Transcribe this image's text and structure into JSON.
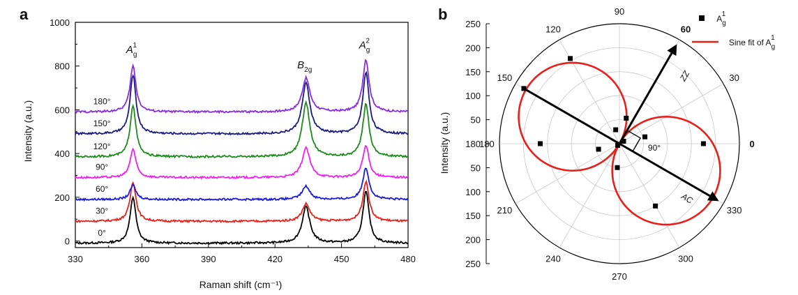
{
  "panels": {
    "a": {
      "letter": "a"
    },
    "b": {
      "letter": "b"
    }
  },
  "chart_data": [
    {
      "type": "line",
      "panel": "a",
      "xlabel": "Raman shift (cm⁻¹)",
      "ylabel": "Intensity (a.u.)",
      "xlim": [
        330,
        480
      ],
      "ylim": [
        -30,
        1000
      ],
      "xticks": [
        330,
        360,
        390,
        420,
        450,
        480
      ],
      "yticks": [
        0,
        200,
        400,
        600,
        800,
        1000
      ],
      "grid": false,
      "peaks": [
        {
          "label": "A",
          "sub": "g",
          "sup": "1",
          "x": 356
        },
        {
          "label": "B",
          "sub": "2g",
          "sup": "",
          "x": 434
        },
        {
          "label": "A",
          "sub": "g",
          "sup": "2",
          "x": 461
        }
      ],
      "series": [
        {
          "name": "0°",
          "color": "#000000",
          "baseline": -10,
          "peak_heights": [
            210,
            165,
            235
          ]
        },
        {
          "name": "30°",
          "color": "#e8201a",
          "baseline": 90,
          "peak_heights": [
            180,
            80,
            180
          ]
        },
        {
          "name": "60°",
          "color": "#1a1adc",
          "baseline": 190,
          "peak_heights": [
            65,
            60,
            145
          ]
        },
        {
          "name": "90°",
          "color": "#f01ef0",
          "baseline": 290,
          "peak_heights": [
            130,
            135,
            145
          ]
        },
        {
          "name": "120°",
          "color": "#1a8a1a",
          "baseline": 385,
          "peak_heights": [
            235,
            245,
            240
          ]
        },
        {
          "name": "150°",
          "color": "#1a1a80",
          "baseline": 490,
          "peak_heights": [
            270,
            230,
            280
          ]
        },
        {
          "name": "180°",
          "color": "#8a2be2",
          "baseline": 590,
          "peak_heights": [
            210,
            155,
            240
          ]
        }
      ]
    },
    {
      "type": "scatter",
      "polar": true,
      "panel": "b",
      "ylabel": "Intensity (a.u.)",
      "rlim": [
        0,
        250
      ],
      "rticks": [
        50,
        100,
        150,
        200,
        250
      ],
      "angle_ticks": [
        0,
        30,
        60,
        90,
        120,
        150,
        180,
        210,
        240,
        270,
        300,
        330
      ],
      "legend_position": "top-right",
      "legend": [
        {
          "label": "A",
          "sub": "g",
          "sup": "1",
          "marker": "square",
          "color": "#000000"
        },
        {
          "label": "Sine fit of A",
          "sub": "g",
          "sup": "1",
          "marker": "line",
          "color": "#e8201a"
        }
      ],
      "points": [
        {
          "theta": 0,
          "r": 175
        },
        {
          "theta": 15,
          "r": 55
        },
        {
          "theta": 30,
          "r": 10
        },
        {
          "theta": 75,
          "r": 55
        },
        {
          "theta": 105,
          "r": 30
        },
        {
          "theta": 120,
          "r": 205
        },
        {
          "theta": 150,
          "r": 230
        },
        {
          "theta": 180,
          "r": 165
        },
        {
          "theta": 195,
          "r": 45
        },
        {
          "theta": 225,
          "r": 5
        },
        {
          "theta": 265,
          "r": 50
        },
        {
          "theta": 300,
          "r": 150
        },
        {
          "theta": 330,
          "r": 225
        }
      ],
      "fit": {
        "amplitude": 225,
        "offset": 0,
        "max_angle": 150
      },
      "annotations": [
        {
          "text": "ZZ",
          "angle": 60
        },
        {
          "text": "AC",
          "angle": 330
        },
        {
          "text": "90°",
          "angle": 0
        }
      ]
    }
  ]
}
